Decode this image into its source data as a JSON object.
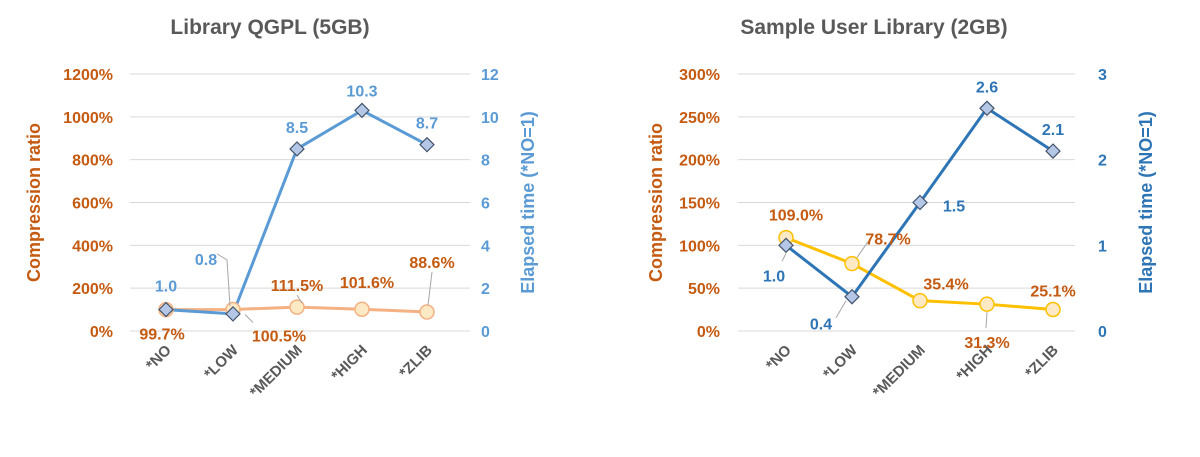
{
  "chart_data": [
    {
      "type": "line",
      "title": "Library QGPL (5GB)",
      "categories": [
        "*NO",
        "*LOW",
        "*MEDIUM",
        "*HIGH",
        "*ZLIB"
      ],
      "ylabel": "Compression ratio",
      "y2label": "Elapsed time (*NO=1)",
      "ylim": [
        0,
        1200
      ],
      "y2lim": [
        0,
        12
      ],
      "ytick_labels": [
        "0%",
        "200%",
        "400%",
        "600%",
        "800%",
        "1000%",
        "1200%"
      ],
      "y2tick_labels": [
        "0",
        "2",
        "4",
        "6",
        "8",
        "10",
        "12"
      ],
      "grid": true,
      "series": [
        {
          "axis": "left",
          "marker": "circle",
          "color": "#F4B183",
          "values": [
            99.7,
            100.5,
            111.5,
            101.6,
            88.6
          ],
          "labels": [
            "99.7%",
            "100.5%",
            "111.5%",
            "101.6%",
            "88.6%"
          ]
        },
        {
          "axis": "right",
          "marker": "diamond",
          "color": "#5B9BD5",
          "values": [
            1.0,
            0.8,
            8.5,
            10.3,
            8.7
          ],
          "labels": [
            "1.0",
            "0.8",
            "8.5",
            "10.3",
            "8.7"
          ]
        }
      ]
    },
    {
      "type": "line",
      "title": "Sample User Library (2GB)",
      "categories": [
        "*NO",
        "*LOW",
        "*MEDIUM",
        "*HIGH",
        "*ZLIB"
      ],
      "ylabel": "Compression ratio",
      "y2label": "Elapsed time (*NO=1)",
      "ylim": [
        0,
        300
      ],
      "y2lim": [
        0,
        3
      ],
      "ytick_labels": [
        "0%",
        "50%",
        "100%",
        "150%",
        "200%",
        "250%",
        "300%"
      ],
      "y2tick_labels": [
        "0",
        "1",
        "2",
        "3"
      ],
      "grid": true,
      "series": [
        {
          "axis": "left",
          "marker": "circle",
          "color": "#FFC000",
          "values": [
            109.0,
            78.7,
            35.4,
            31.3,
            25.1
          ],
          "labels": [
            "109.0%",
            "78.7%",
            "35.4%",
            "31.3%",
            "25.1%"
          ]
        },
        {
          "axis": "right",
          "marker": "diamond",
          "color": "#2E75B6",
          "values": [
            1.0,
            0.4,
            1.5,
            2.6,
            2.1
          ],
          "labels": [
            "1.0",
            "0.4",
            "1.5",
            "2.6",
            "2.1"
          ]
        }
      ]
    }
  ],
  "colors": {
    "left_axis_text": "#C55A11",
    "right_axis_text_chart1": "#5B9BD5",
    "right_axis_text_chart2": "#2E75B6",
    "grid": "#D9D9D9",
    "category_text": "#595959",
    "title_text": "#595959"
  }
}
